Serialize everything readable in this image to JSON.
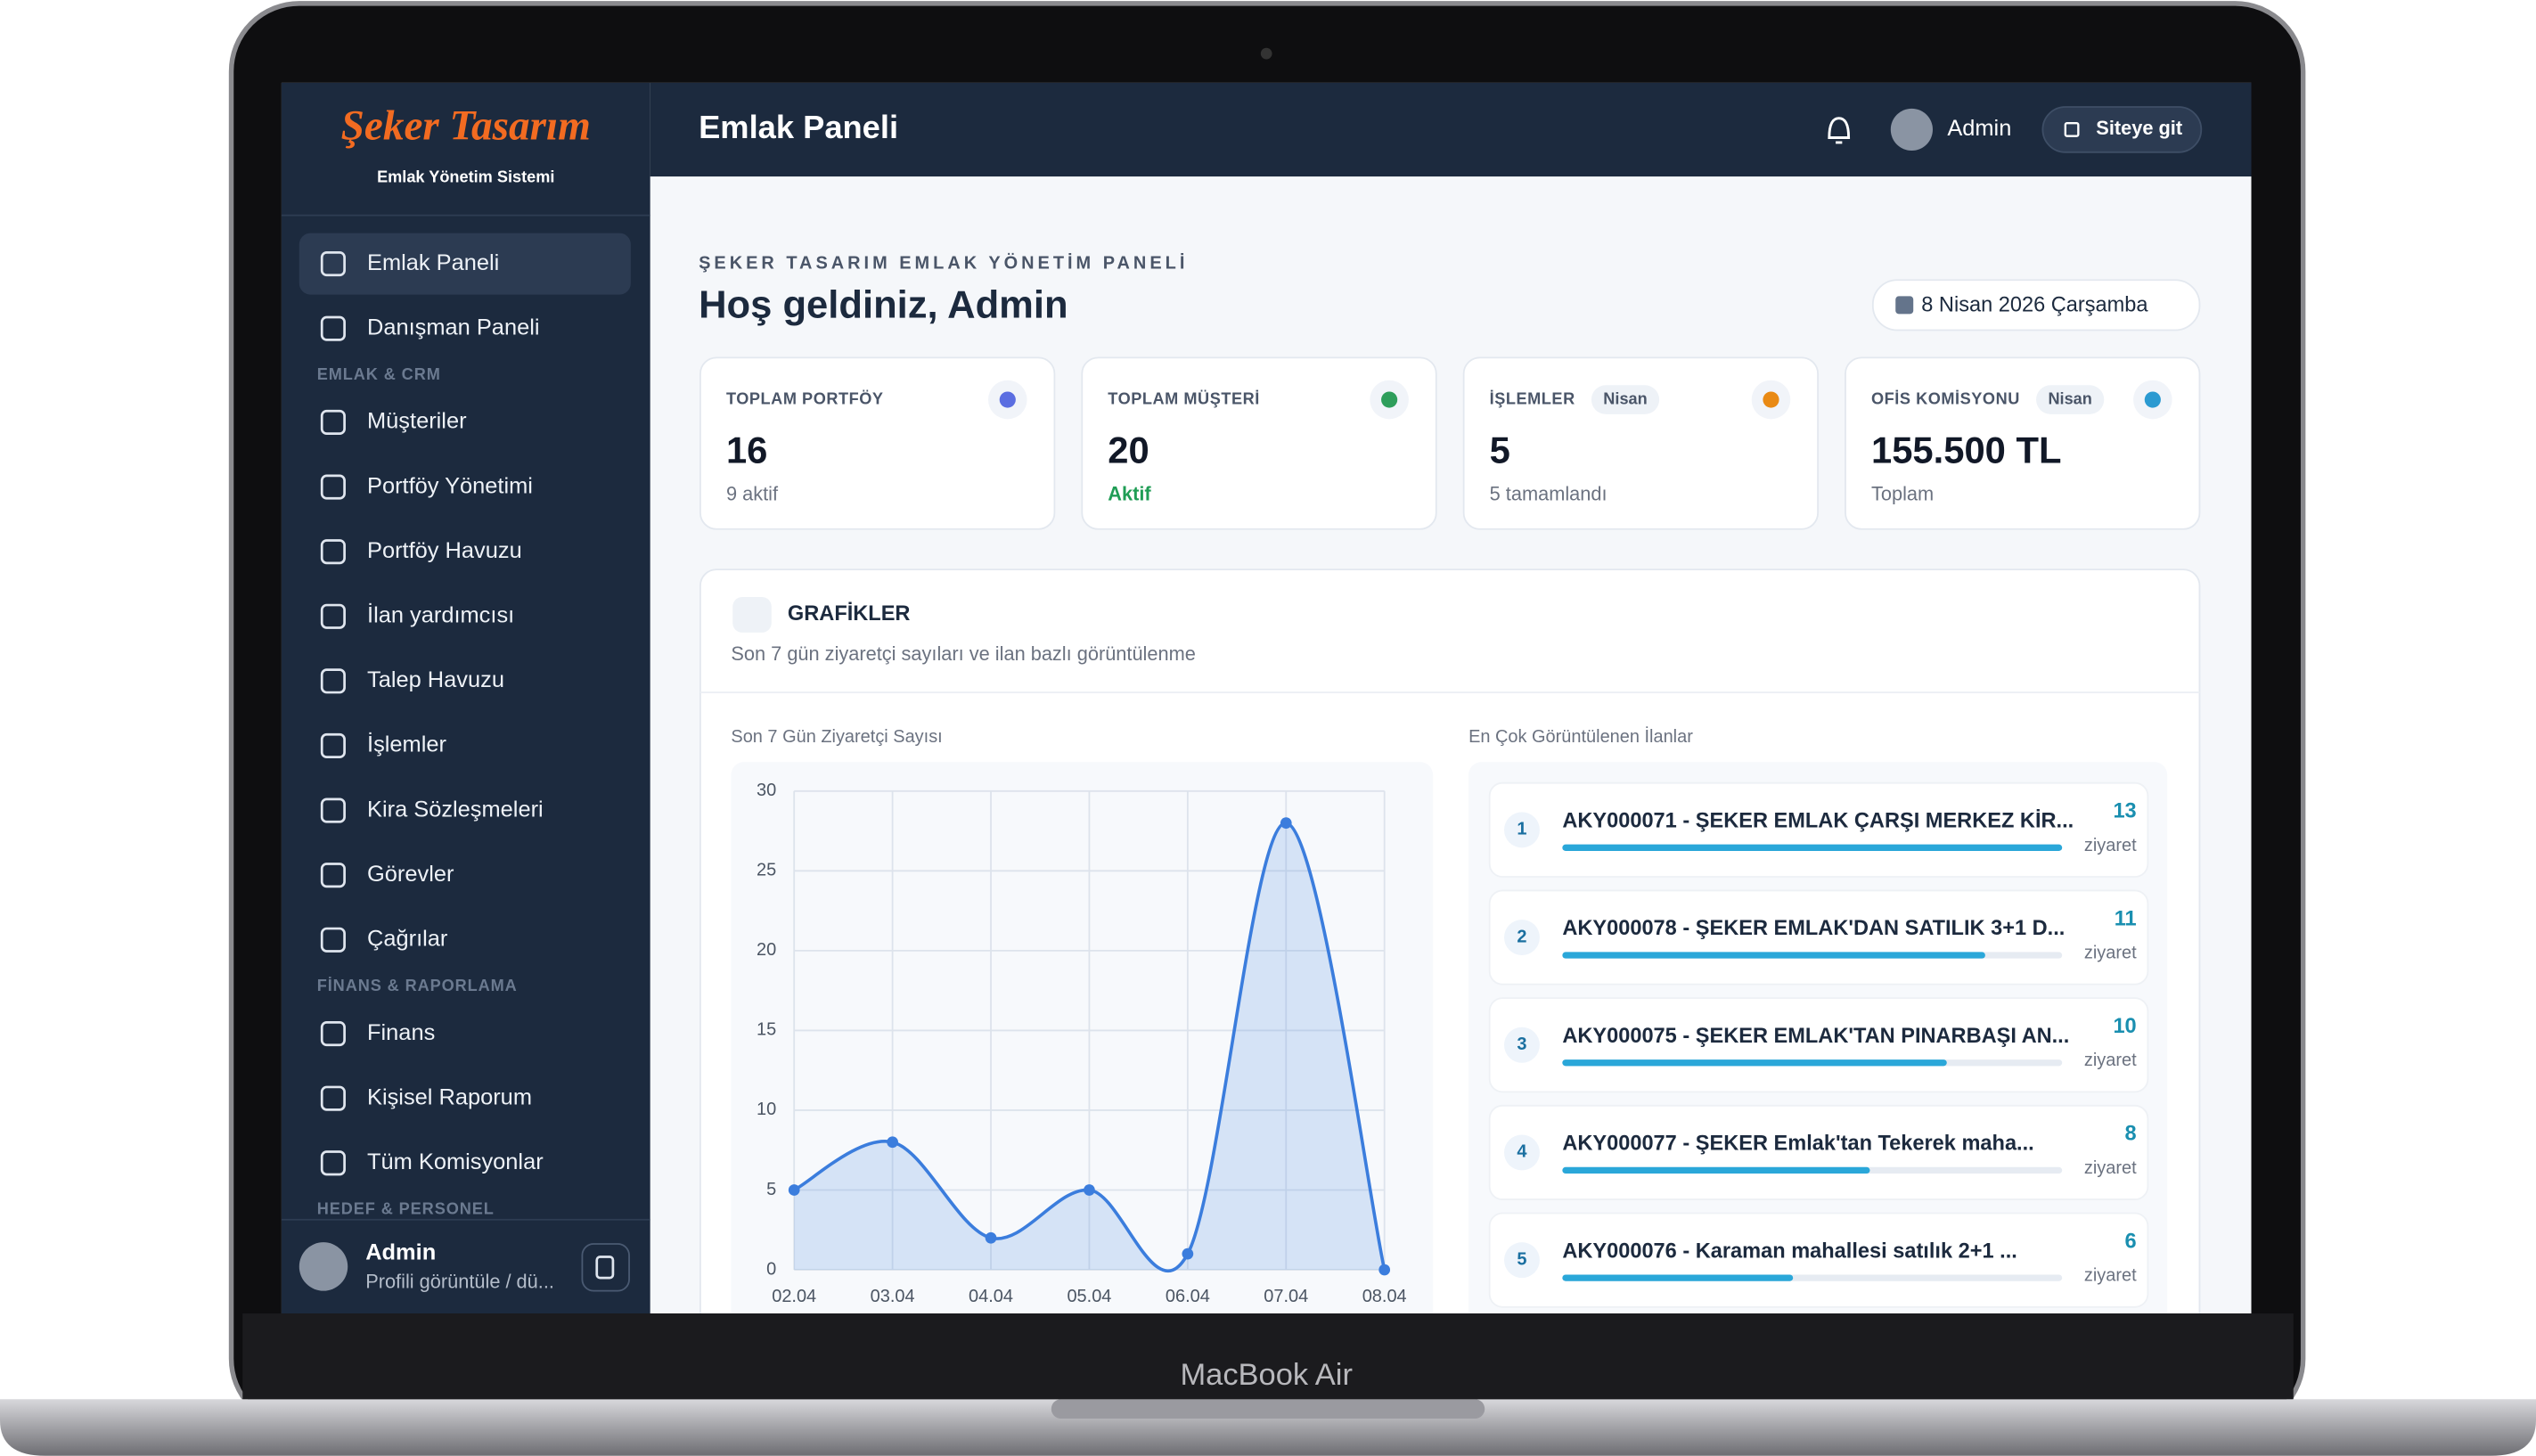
{
  "device_label": "MacBook Air",
  "sidebar": {
    "brand": "Şeker Tasarım",
    "tagline": "Emlak Yönetim Sistemi",
    "entries": [
      {
        "label": "Emlak Paneli"
      },
      {
        "label": "Danışman Paneli"
      },
      {
        "section": "EMLAK & CRM"
      },
      {
        "label": "Müşteriler"
      },
      {
        "label": "Portföy Yönetimi"
      },
      {
        "label": "Portföy Havuzu"
      },
      {
        "label": "İlan yardımcısı"
      },
      {
        "label": "Talep Havuzu"
      },
      {
        "label": "İşlemler"
      },
      {
        "label": "Kira Sözleşmeleri"
      },
      {
        "label": "Görevler"
      },
      {
        "label": "Çağrılar"
      },
      {
        "section": "FİNANS & RAPORLAMA"
      },
      {
        "label": "Finans"
      },
      {
        "label": "Kişisel Raporum"
      },
      {
        "label": "Tüm Komisyonlar"
      },
      {
        "section": "HEDEF & PERSONEL"
      }
    ],
    "user": {
      "name": "Admin",
      "subtitle": "Profili görüntüle / dü..."
    }
  },
  "header": {
    "title": "Emlak Paneli",
    "user": "Admin",
    "button": "Siteye git"
  },
  "welcome": {
    "overline": "ŞEKER TASARIM EMLAK YÖNETİM PANELİ",
    "title": "Hoş geldiniz, Admin",
    "date": "8 Nisan 2026 Çarşamba"
  },
  "stats": [
    {
      "label": "TOPLAM PORTFÖY",
      "value": 16,
      "note": "9 aktif"
    },
    {
      "label": "TOPLAM MÜŞTERİ",
      "value": 20,
      "note": "Aktif"
    },
    {
      "label": "İŞLEMLER",
      "badge": "Nisan",
      "value": 5,
      "note": "5 tamamlandı"
    },
    {
      "label": "OFİS KOMİSYONU",
      "badge": "Nisan",
      "value": "155.500 TL",
      "note": "Toplam"
    }
  ],
  "charts_panel": {
    "title": "GRAFİKLER",
    "subtitle": "Son 7 gün ziyaretçi sayıları ve ilan bazlı görüntülenme"
  },
  "chart_data": {
    "type": "line",
    "title": "Son 7 Gün Ziyaretçi Sayısı",
    "categories": [
      "02.04",
      "03.04",
      "04.04",
      "05.04",
      "06.04",
      "07.04",
      "08.04"
    ],
    "values": [
      5,
      8,
      2,
      5,
      1,
      28,
      0
    ],
    "color": "#3b7ddd",
    "ylim": [
      0,
      30
    ],
    "yticks": [
      0,
      5,
      10,
      15,
      20,
      25,
      30
    ],
    "grid": true
  },
  "top_listings": {
    "title": "En Çok Görüntülenen İlanlar",
    "unit": "ziyaret",
    "items": [
      {
        "rank": 1,
        "title": "AKY000071 - ŞEKER EMLAK ÇARŞI MERKEZ KİR...",
        "views": 13
      },
      {
        "rank": 2,
        "title": "AKY000078 - ŞEKER EMLAK'DAN SATILIK 3+1 D...",
        "views": 11
      },
      {
        "rank": 3,
        "title": "AKY000075 - ŞEKER EMLAK'TAN PINARBAŞI AN...",
        "views": 10
      },
      {
        "rank": 4,
        "title": "AKY000077 - ŞEKER Emlak'tan Tekerek maha...",
        "views": 8
      },
      {
        "rank": 5,
        "title": "AKY000076 - Karaman mahallesi satılık 2+1 ...",
        "views": 6
      }
    ]
  }
}
